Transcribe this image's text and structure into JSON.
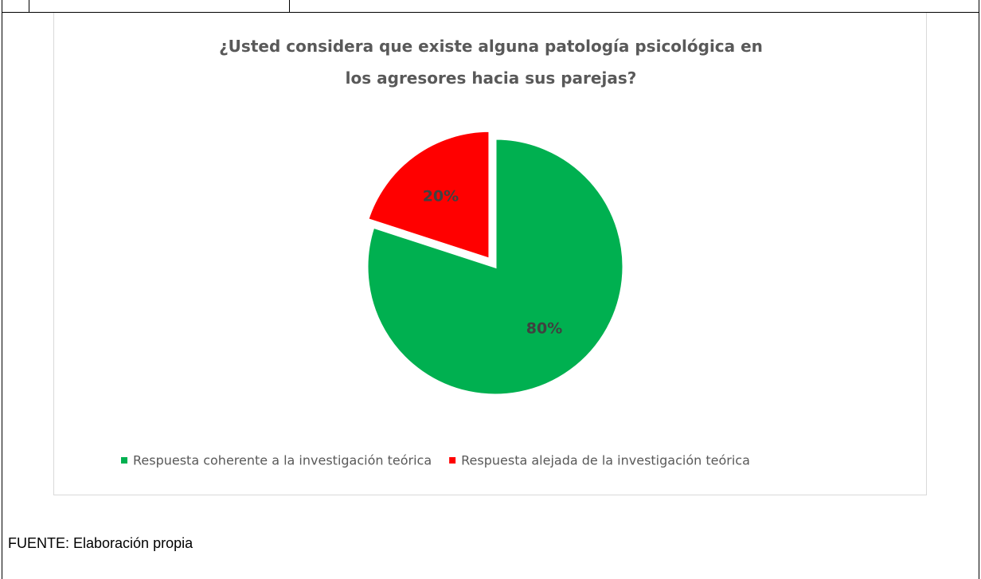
{
  "chart_data": {
    "type": "pie",
    "title": "¿Usted considera que existe alguna patología psicológica en los agresores hacia sus parejas?",
    "categories": [
      "Respuesta coherente a la investigación teórica",
      "Respuesta alejada de la investigación teórica"
    ],
    "values": [
      80,
      20
    ],
    "value_labels": [
      "80%",
      "20%"
    ],
    "colors": [
      "#00b050",
      "#ff0000"
    ],
    "explode": [
      false,
      true
    ],
    "legend": "bottom"
  },
  "source": "FUENTE: Elaboración propia"
}
